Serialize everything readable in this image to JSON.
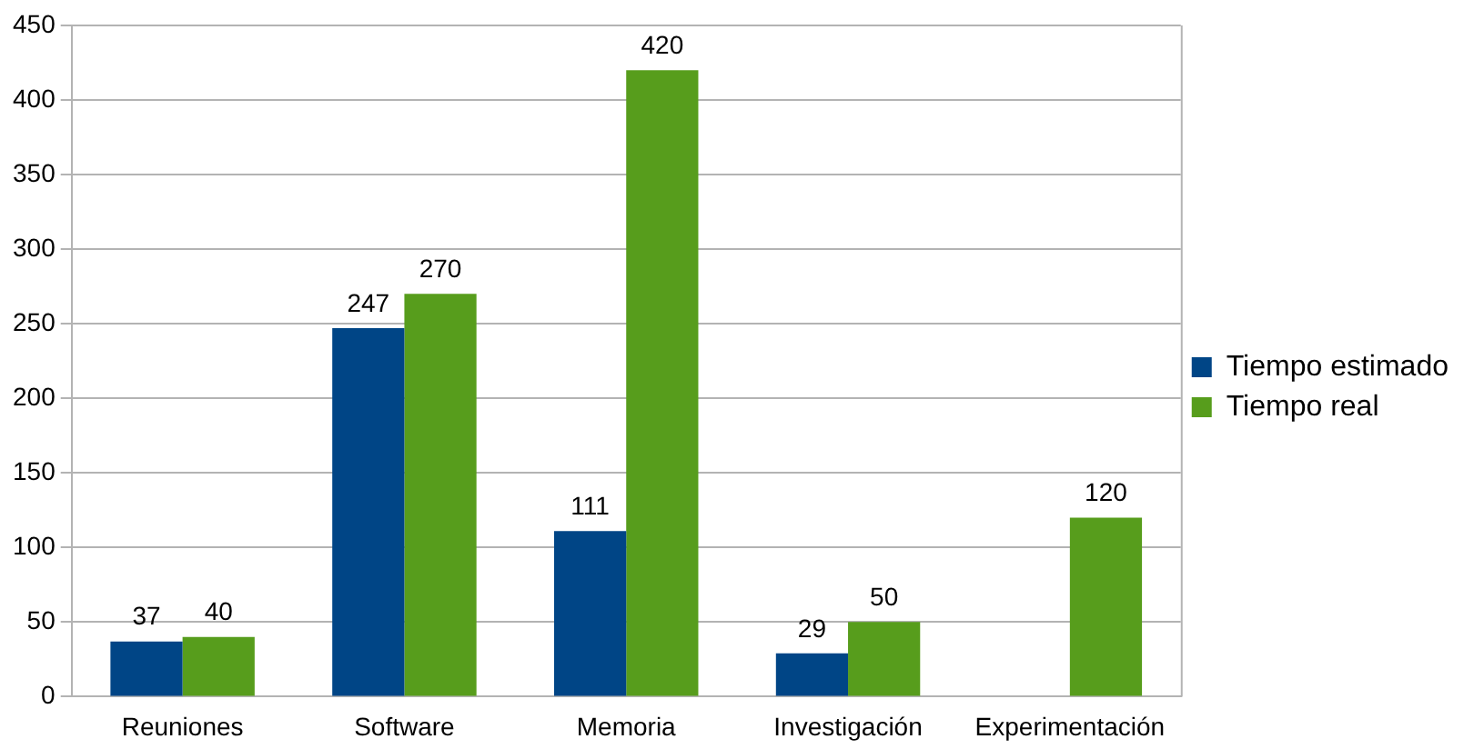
{
  "chart_data": {
    "type": "bar",
    "categories": [
      "Reuniones",
      "Software",
      "Memoria",
      "Investigación",
      "Experimentación"
    ],
    "series": [
      {
        "name": "Tiempo estimado",
        "color": "#004586",
        "values": [
          37,
          247,
          111,
          29,
          null
        ]
      },
      {
        "name": "Tiempo real",
        "color": "#579d1c",
        "values": [
          40,
          270,
          420,
          50,
          120
        ]
      }
    ],
    "ylim": [
      0,
      450
    ],
    "yticks": [
      0,
      50,
      100,
      150,
      200,
      250,
      300,
      350,
      400,
      450
    ],
    "grid": "y",
    "legend": "right",
    "data_labels": true
  }
}
